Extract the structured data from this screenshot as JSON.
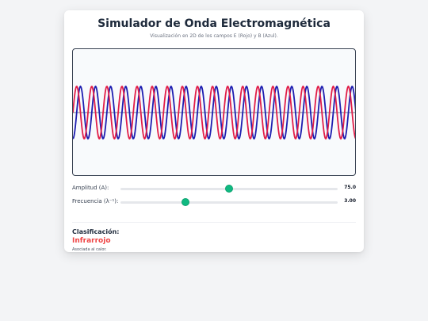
{
  "header": {
    "title": "Simulador de Onda Electromagnética",
    "subtitle": "Visualización en 2D de los campos E (Rojo) y B (Azul)."
  },
  "wave": {
    "e_color": "#e11d48",
    "b_color": "#1d1db0",
    "axis_color": "#64748b",
    "cycles_visible": 18.8,
    "phase_offset_cycles": 0.25
  },
  "controls": {
    "amplitude": {
      "label": "Amplitud (A):",
      "value": "75.0",
      "min": 0,
      "max": 150,
      "current": 75
    },
    "frequency": {
      "label": "Frecuencia (λ⁻¹):",
      "value": "3.00",
      "min": 0,
      "max": 10,
      "current": 3
    }
  },
  "classification": {
    "label": "Clasificación:",
    "value": "Infrarrojo",
    "description": "Asociada al calor."
  }
}
